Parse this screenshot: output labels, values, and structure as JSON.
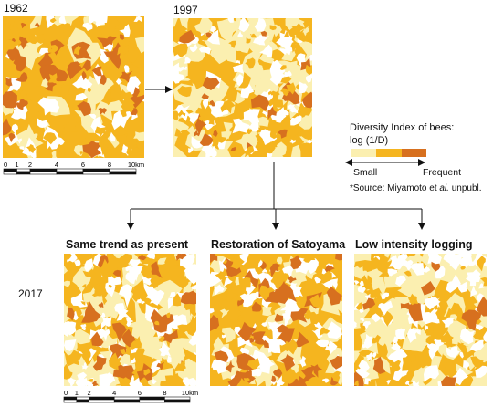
{
  "years": {
    "y1962": "1962",
    "y1997": "1997",
    "y2017": "2017"
  },
  "scenarios": [
    {
      "title": "Same trend as present"
    },
    {
      "title": "Restoration of Satoyama"
    },
    {
      "title": "Low intensity logging"
    }
  ],
  "scale": {
    "ticks": [
      "0",
      "1",
      "2",
      "4",
      "6",
      "8",
      "10"
    ],
    "unit": "km"
  },
  "legend": {
    "title_line1": "Diversity Index of bees:",
    "title_line2": "log (1/D)",
    "colors": [
      "#fbefb0",
      "#f5b51f",
      "#d7701f"
    ],
    "low_label": "Small",
    "high_label": "Frequent"
  },
  "source": {
    "prefix": "*Source: Miyamoto et ",
    "italic": "al.",
    "suffix": " unpubl."
  }
}
